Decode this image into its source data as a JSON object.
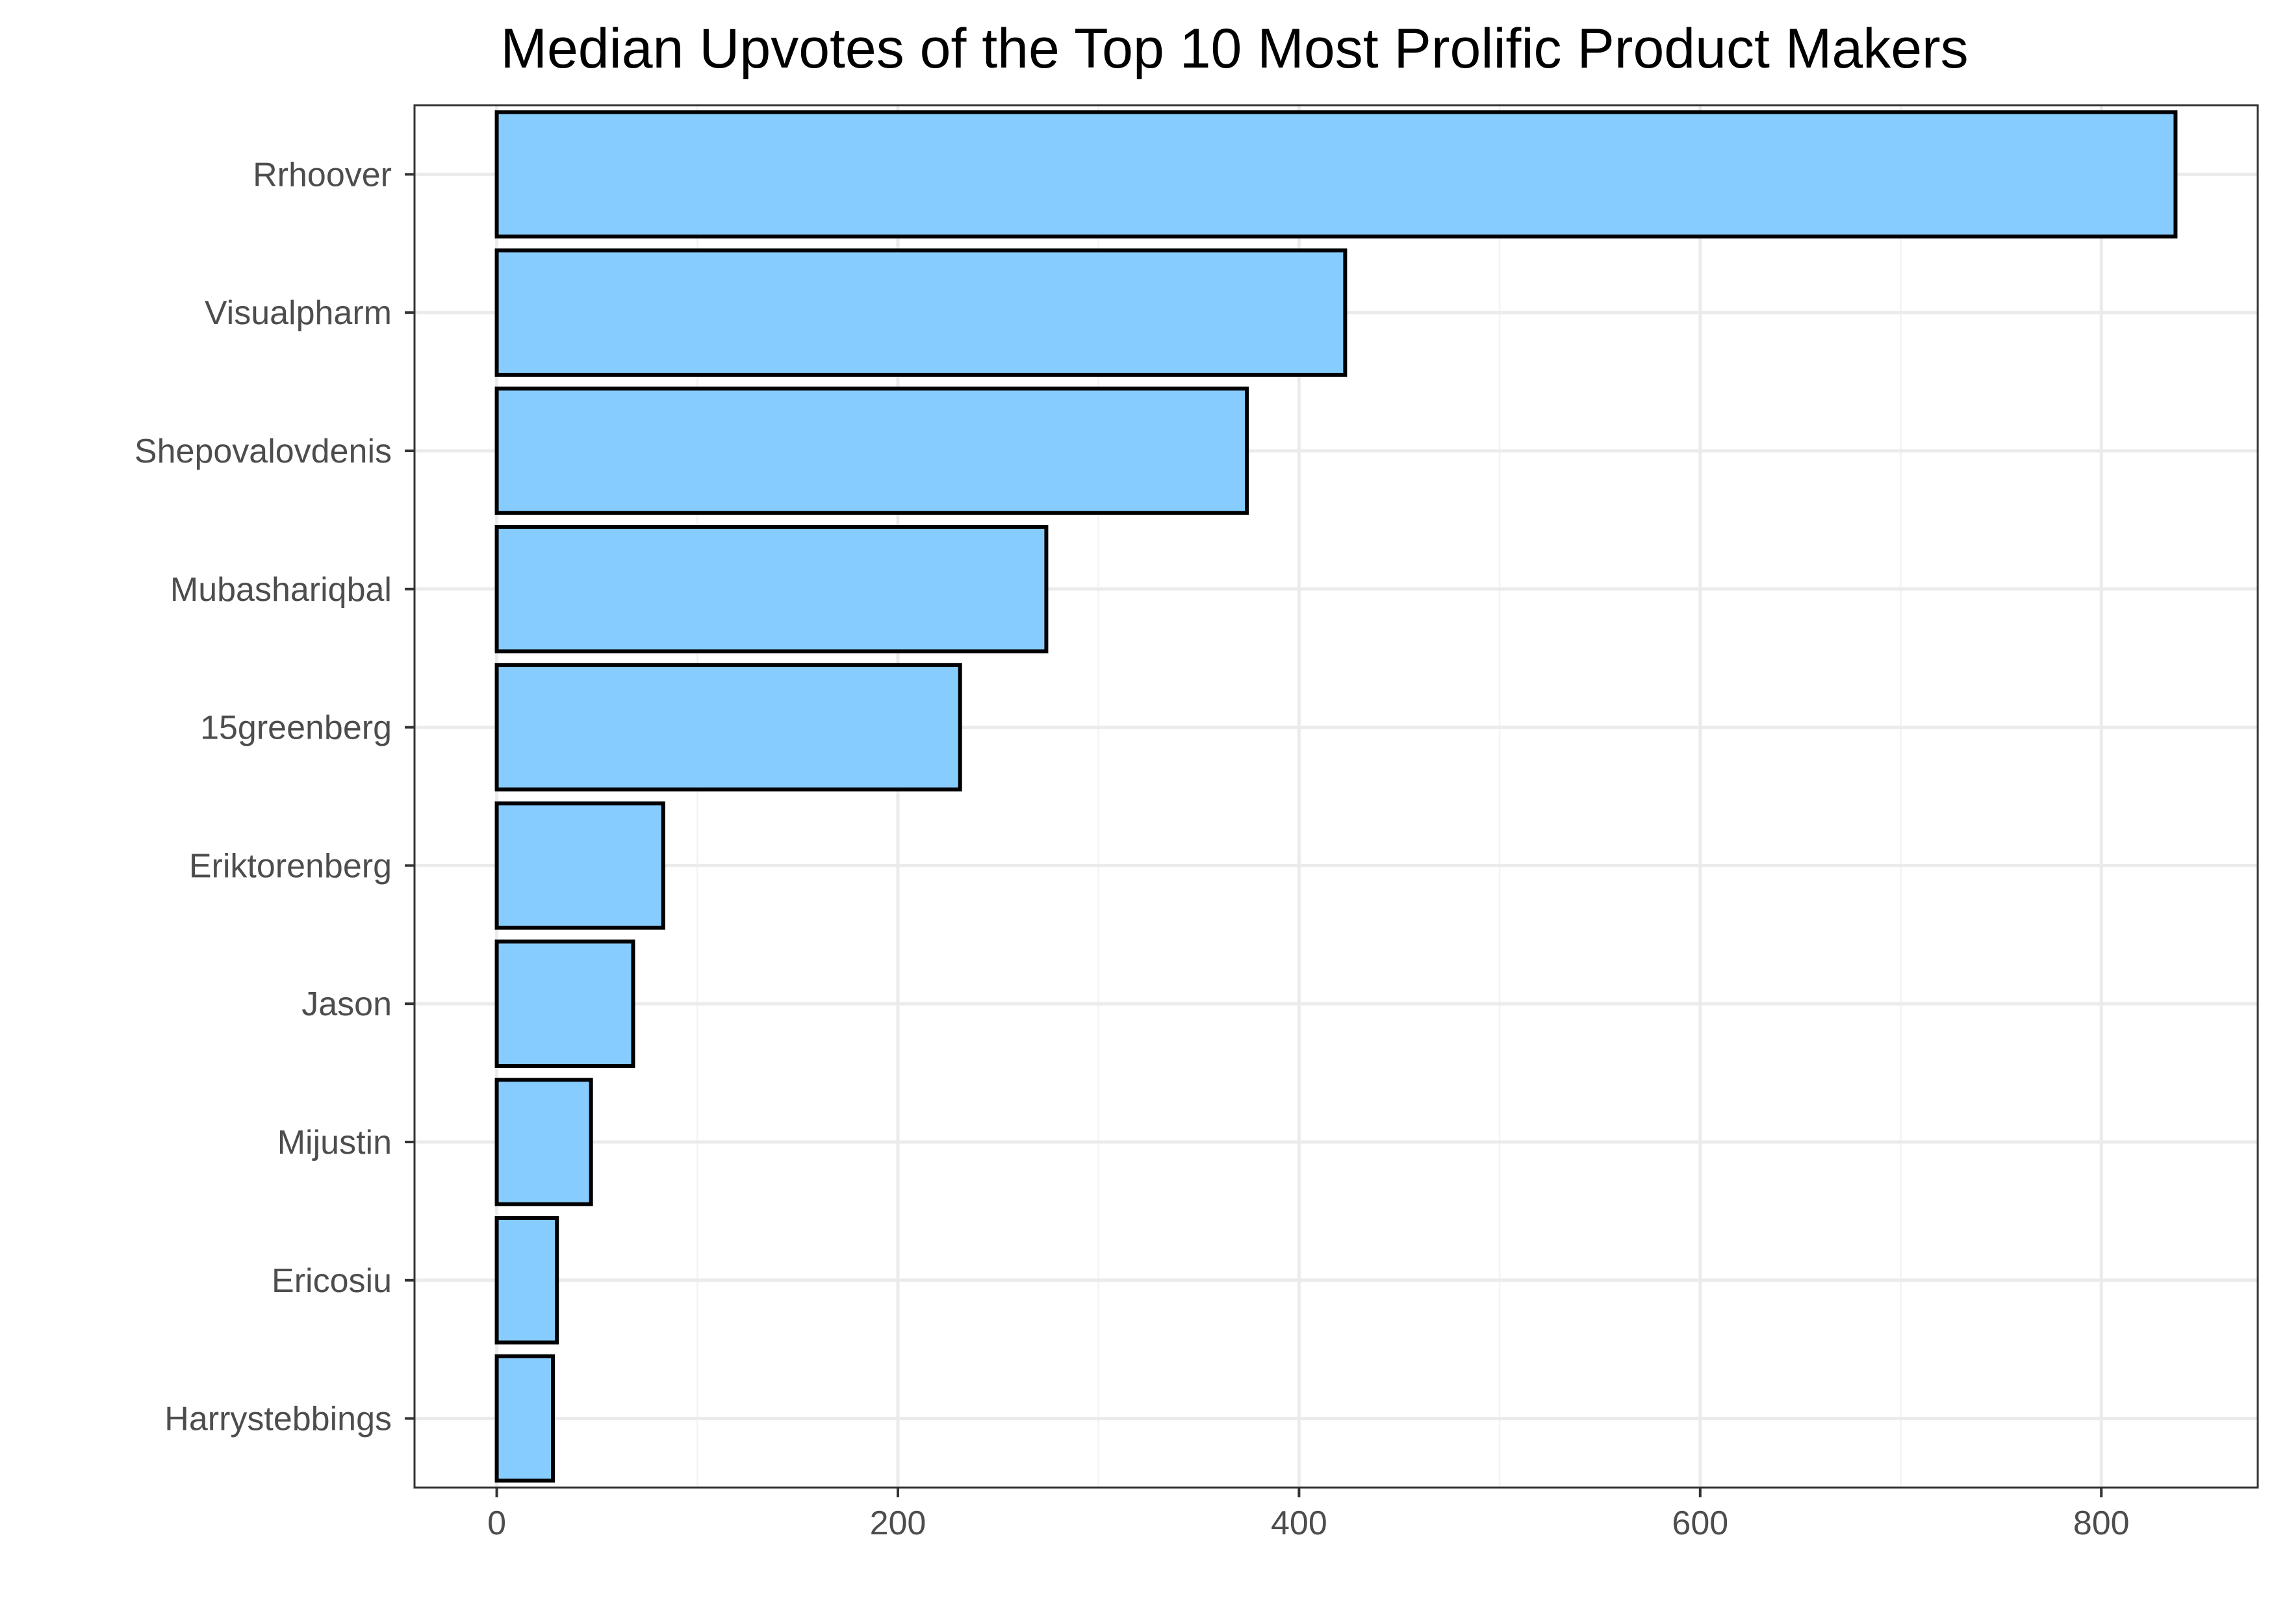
{
  "chart_data": {
    "type": "bar",
    "orientation": "horizontal",
    "title": "Median Upvotes of the Top 10 Most Prolific Product Makers",
    "xlabel": "",
    "ylabel": "",
    "categories": [
      "Rrhoover",
      "Visualpharm",
      "Shepovalovdenis",
      "Mubashariqbal",
      "15greenberg",
      "Eriktorenberg",
      "Jason",
      "Mijustin",
      "Ericosiu",
      "Harrystebbings"
    ],
    "values": [
      837,
      423,
      374,
      274,
      231,
      83,
      68,
      47,
      30,
      28
    ],
    "xlim": [
      -41,
      878
    ],
    "x_ticks": [
      0,
      200,
      400,
      600,
      800
    ],
    "x_minor_ticks": [
      100,
      300,
      500,
      700
    ],
    "grid": true,
    "legend": "none",
    "colors": {
      "bar_fill": "#87CCFF",
      "bar_stroke": "#000000"
    }
  }
}
